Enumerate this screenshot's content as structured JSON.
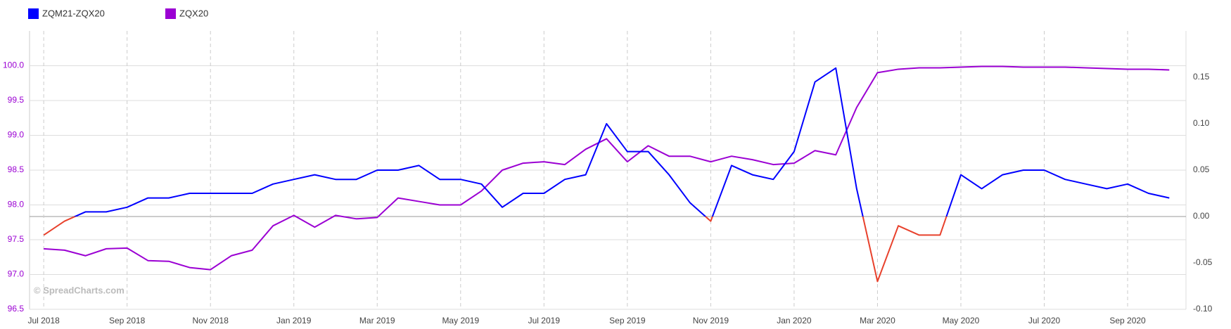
{
  "chart_data": {
    "type": "line",
    "watermark": "© SpreadCharts.com",
    "x": [
      0,
      0.5,
      1,
      1.5,
      2,
      2.5,
      3,
      3.5,
      4,
      4.5,
      5,
      5.5,
      6,
      6.5,
      7,
      7.5,
      8,
      8.5,
      9,
      9.5,
      10,
      10.5,
      11,
      11.5,
      12,
      12.5,
      13,
      13.5,
      14,
      14.5,
      15,
      15.5,
      16,
      16.5,
      17,
      17.5,
      18,
      18.5,
      19,
      19.5,
      20,
      20.5,
      21,
      21.5,
      22,
      22.5,
      23,
      23.5,
      24,
      24.5,
      25,
      25.5,
      26,
      26.5,
      27
    ],
    "xlim": [
      -0.34,
      27.4
    ],
    "xticks": [
      {
        "value": 0,
        "label": "Jul 2018"
      },
      {
        "value": 2,
        "label": "Sep 2018"
      },
      {
        "value": 4,
        "label": "Nov 2018"
      },
      {
        "value": 6,
        "label": "Jan 2019"
      },
      {
        "value": 8,
        "label": "Mar 2019"
      },
      {
        "value": 10,
        "label": "May 2019"
      },
      {
        "value": 12,
        "label": "Jul 2019"
      },
      {
        "value": 14,
        "label": "Sep 2019"
      },
      {
        "value": 16,
        "label": "Nov 2019"
      },
      {
        "value": 18,
        "label": "Jan 2020"
      },
      {
        "value": 20,
        "label": "Mar 2020"
      },
      {
        "value": 22,
        "label": "May 2020"
      },
      {
        "value": 24,
        "label": "Jul 2020"
      },
      {
        "value": 26,
        "label": "Sep 2020"
      }
    ],
    "ylim": [
      96.5,
      100.5
    ],
    "yticks": [
      96.5,
      {
        "value": 97,
        "label": "97.0"
      },
      97.5,
      {
        "value": 98,
        "label": "98.0"
      },
      98.5,
      {
        "value": 99,
        "label": "99.0"
      },
      99.5,
      {
        "value": 100,
        "label": "100.0"
      }
    ],
    "y2lim": [
      -0.1,
      0.2
    ],
    "y2ticks": [
      {
        "value": -0.1,
        "label": "-0.10"
      },
      {
        "value": -0.05,
        "label": "-0.05"
      },
      {
        "value": 0,
        "label": "0.00"
      },
      {
        "value": 0.05,
        "label": "0.05"
      },
      {
        "value": 0.1,
        "label": "0.10"
      },
      {
        "value": 0.15,
        "label": "0.15"
      }
    ],
    "grid": true,
    "series": [
      {
        "name": "ZQM21-ZQX20",
        "axis": "y2",
        "color": "#0000ff",
        "negative_color": "#e8412c",
        "values": [
          -0.02,
          -0.005,
          0.005,
          0.005,
          0.01,
          0.02,
          0.02,
          0.025,
          0.025,
          0.025,
          0.025,
          0.035,
          0.04,
          0.045,
          0.04,
          0.04,
          0.05,
          0.05,
          0.055,
          0.04,
          0.04,
          0.035,
          0.01,
          0.025,
          0.025,
          0.04,
          0.045,
          0.1,
          0.07,
          0.07,
          0.045,
          0.015,
          -0.005,
          0.055,
          0.045,
          0.04,
          0.07,
          0.145,
          0.16,
          0.03,
          -0.07,
          -0.01,
          -0.02,
          -0.02,
          0.045,
          0.03,
          0.045,
          0.05,
          0.05,
          0.04,
          0.035,
          0.03,
          0.035,
          0.025,
          0.02
        ]
      },
      {
        "name": "ZQX20",
        "axis": "y",
        "color": "#9b00d3",
        "values": [
          97.37,
          97.35,
          97.27,
          97.37,
          97.38,
          97.2,
          97.19,
          97.1,
          97.07,
          97.27,
          97.35,
          97.7,
          97.85,
          97.68,
          97.85,
          97.8,
          97.82,
          98.1,
          98.05,
          98.0,
          98.0,
          98.2,
          98.5,
          98.6,
          98.62,
          98.58,
          98.8,
          98.95,
          98.62,
          98.85,
          98.7,
          98.7,
          98.62,
          98.7,
          98.65,
          98.58,
          98.6,
          98.78,
          98.72,
          99.4,
          99.9,
          99.95,
          99.97,
          99.97,
          99.98,
          99.99,
          99.99,
          99.98,
          99.98,
          99.98,
          99.97,
          99.96,
          99.95,
          99.95,
          99.94
        ]
      }
    ]
  }
}
